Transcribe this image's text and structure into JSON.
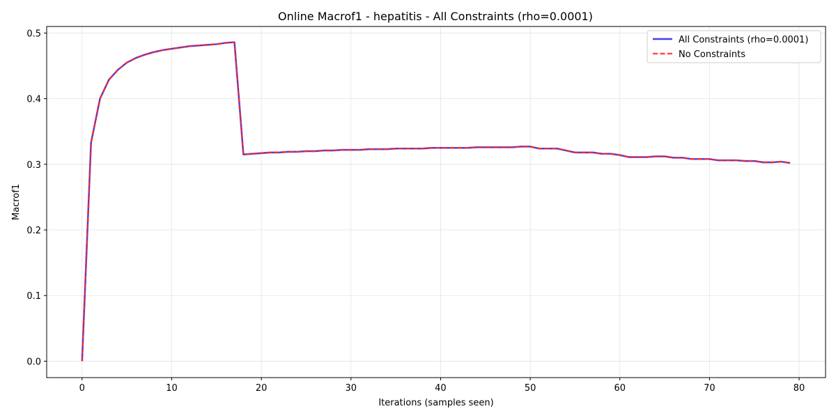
{
  "chart_data": {
    "type": "line",
    "title": "Online Macrof1 - hepatitis - All Constraints (rho=0.0001)",
    "xlabel": "Iterations (samples seen)",
    "ylabel": "Macrof1",
    "xlim": [
      -3.95,
      82.95
    ],
    "ylim": [
      -0.025,
      0.51
    ],
    "xticks": [
      0,
      10,
      20,
      30,
      40,
      50,
      60,
      70,
      80
    ],
    "yticks": [
      0.0,
      0.1,
      0.2,
      0.3,
      0.4,
      0.5
    ],
    "ytick_labels": [
      "0.0",
      "0.1",
      "0.2",
      "0.3",
      "0.4",
      "0.5"
    ],
    "grid": true,
    "legend_position": "top-right",
    "x": [
      0,
      1,
      2,
      3,
      4,
      5,
      6,
      7,
      8,
      9,
      10,
      11,
      12,
      13,
      14,
      15,
      16,
      17,
      18,
      19,
      20,
      21,
      22,
      23,
      24,
      25,
      26,
      27,
      28,
      29,
      30,
      31,
      32,
      33,
      34,
      35,
      36,
      37,
      38,
      39,
      40,
      41,
      42,
      43,
      44,
      45,
      46,
      47,
      48,
      49,
      50,
      51,
      52,
      53,
      54,
      55,
      56,
      57,
      58,
      59,
      60,
      61,
      62,
      63,
      64,
      65,
      66,
      67,
      68,
      69,
      70,
      71,
      72,
      73,
      74,
      75,
      76,
      77,
      78,
      79
    ],
    "series": [
      {
        "name": "All Constraints (rho=0.0001)",
        "color": "#1f1fe6",
        "style": "solid",
        "values": [
          0.0,
          0.333,
          0.4,
          0.429,
          0.444,
          0.455,
          0.462,
          0.467,
          0.471,
          0.474,
          0.476,
          0.478,
          0.48,
          0.481,
          0.482,
          0.483,
          0.485,
          0.486,
          0.315,
          0.316,
          0.317,
          0.318,
          0.318,
          0.319,
          0.319,
          0.32,
          0.32,
          0.321,
          0.321,
          0.322,
          0.322,
          0.322,
          0.323,
          0.323,
          0.323,
          0.324,
          0.324,
          0.324,
          0.324,
          0.325,
          0.325,
          0.325,
          0.325,
          0.325,
          0.326,
          0.326,
          0.326,
          0.326,
          0.326,
          0.327,
          0.327,
          0.324,
          0.324,
          0.324,
          0.321,
          0.318,
          0.318,
          0.318,
          0.316,
          0.316,
          0.314,
          0.311,
          0.311,
          0.311,
          0.312,
          0.312,
          0.31,
          0.31,
          0.308,
          0.308,
          0.308,
          0.306,
          0.306,
          0.306,
          0.305,
          0.305,
          0.303,
          0.303,
          0.304,
          0.302
        ]
      },
      {
        "name": "No Constraints",
        "color": "#ff2a2a",
        "style": "dashed",
        "values": [
          0.0,
          0.333,
          0.4,
          0.429,
          0.444,
          0.455,
          0.462,
          0.467,
          0.471,
          0.474,
          0.476,
          0.478,
          0.48,
          0.481,
          0.482,
          0.483,
          0.485,
          0.486,
          0.315,
          0.316,
          0.317,
          0.318,
          0.318,
          0.319,
          0.319,
          0.32,
          0.32,
          0.321,
          0.321,
          0.322,
          0.322,
          0.322,
          0.323,
          0.323,
          0.323,
          0.324,
          0.324,
          0.324,
          0.324,
          0.325,
          0.325,
          0.325,
          0.325,
          0.325,
          0.326,
          0.326,
          0.326,
          0.326,
          0.326,
          0.327,
          0.327,
          0.324,
          0.324,
          0.324,
          0.321,
          0.318,
          0.318,
          0.318,
          0.316,
          0.316,
          0.314,
          0.311,
          0.311,
          0.311,
          0.312,
          0.312,
          0.31,
          0.31,
          0.308,
          0.308,
          0.308,
          0.306,
          0.306,
          0.306,
          0.305,
          0.305,
          0.303,
          0.303,
          0.304,
          0.302
        ]
      }
    ]
  }
}
